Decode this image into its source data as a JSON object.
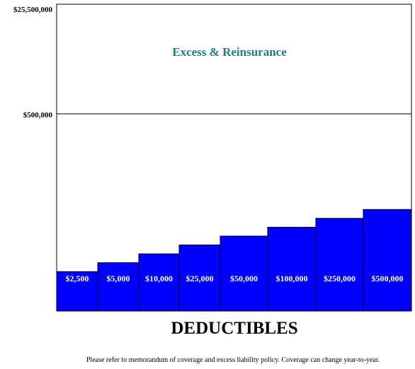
{
  "chart_data": {
    "type": "bar",
    "xlabel": "DEDUCTIBLES",
    "y_ticks": [
      "$25,500,000",
      "$500,000"
    ],
    "categories": [
      "$2,500",
      "$5,000",
      "$10,000",
      "$25,000",
      "$50,000",
      "$100,000",
      "$250,000",
      "$500,000"
    ],
    "values": [
      0.2,
      0.245,
      0.29,
      0.335,
      0.38,
      0.425,
      0.47,
      0.515
    ],
    "value_unit": "fraction of retention band (0 to $500,000)",
    "upper_band_label": "Excess & Reinsurance",
    "grid": false,
    "colors": {
      "bar": "#0000ff",
      "bar_edge": "#000000",
      "zone_title": "#1f7a8c"
    }
  },
  "footnote": "Please refer to memorandum of coverage and excess liability policy.  Coverage can change year-to-year."
}
